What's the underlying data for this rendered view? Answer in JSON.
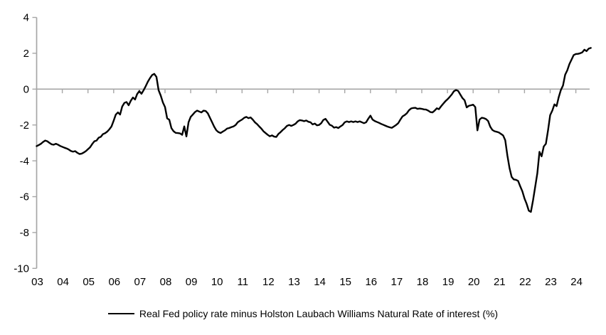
{
  "legend": {
    "label": "Real Fed policy rate minus Holston Laubach Williams Natural Rate of interest (%)"
  },
  "chart_data": {
    "type": "line",
    "title": "",
    "xlabel": "",
    "ylabel": "",
    "grid": false,
    "legend_position": "bottom-center",
    "line_color": "#000000",
    "axis_color": "#a6a6a6",
    "label_color": "#000000",
    "ylim": [
      -10,
      4
    ],
    "y_ticks": [
      4,
      2,
      0,
      -2,
      -4,
      -6,
      -8,
      -10
    ],
    "x_tick_labels": [
      "03",
      "04",
      "05",
      "06",
      "07",
      "08",
      "09",
      "10",
      "11",
      "12",
      "13",
      "14",
      "15",
      "16",
      "17",
      "18",
      "19",
      "20",
      "21",
      "22",
      "23",
      "24"
    ],
    "series": [
      {
        "name": "Real Fed policy rate minus Holston Laubach Williams Natural Rate of interest (%)",
        "frequency": "monthly",
        "start": "2003-01",
        "end": "2024-08",
        "values": [
          -3.18,
          -3.12,
          -3.05,
          -2.95,
          -2.87,
          -2.91,
          -3.0,
          -3.08,
          -3.1,
          -3.05,
          -3.1,
          -3.17,
          -3.22,
          -3.27,
          -3.31,
          -3.37,
          -3.45,
          -3.49,
          -3.46,
          -3.55,
          -3.62,
          -3.6,
          -3.54,
          -3.46,
          -3.35,
          -3.24,
          -3.06,
          -2.91,
          -2.87,
          -2.71,
          -2.66,
          -2.51,
          -2.46,
          -2.37,
          -2.24,
          -2.08,
          -1.76,
          -1.42,
          -1.3,
          -1.42,
          -0.97,
          -0.77,
          -0.72,
          -0.9,
          -0.65,
          -0.47,
          -0.58,
          -0.27,
          -0.11,
          -0.26,
          -0.06,
          0.17,
          0.42,
          0.62,
          0.79,
          0.85,
          0.68,
          -0.06,
          -0.36,
          -0.74,
          -1.0,
          -1.63,
          -1.71,
          -2.18,
          -2.35,
          -2.44,
          -2.45,
          -2.47,
          -2.55,
          -2.08,
          -2.64,
          -1.85,
          -1.55,
          -1.42,
          -1.28,
          -1.2,
          -1.25,
          -1.3,
          -1.2,
          -1.22,
          -1.35,
          -1.6,
          -1.85,
          -2.1,
          -2.3,
          -2.4,
          -2.45,
          -2.37,
          -2.3,
          -2.2,
          -2.17,
          -2.12,
          -2.08,
          -2.0,
          -1.85,
          -1.77,
          -1.7,
          -1.6,
          -1.55,
          -1.62,
          -1.58,
          -1.7,
          -1.85,
          -1.95,
          -2.08,
          -2.2,
          -2.35,
          -2.45,
          -2.55,
          -2.63,
          -2.58,
          -2.65,
          -2.67,
          -2.5,
          -2.4,
          -2.28,
          -2.18,
          -2.05,
          -2.0,
          -2.05,
          -2.0,
          -1.93,
          -1.8,
          -1.73,
          -1.75,
          -1.79,
          -1.75,
          -1.82,
          -1.85,
          -1.97,
          -1.92,
          -2.02,
          -2.0,
          -1.9,
          -1.72,
          -1.66,
          -1.82,
          -1.99,
          -2.04,
          -2.15,
          -2.12,
          -2.17,
          -2.08,
          -2.0,
          -1.85,
          -1.8,
          -1.84,
          -1.8,
          -1.84,
          -1.8,
          -1.84,
          -1.8,
          -1.85,
          -1.9,
          -1.85,
          -1.65,
          -1.48,
          -1.7,
          -1.78,
          -1.83,
          -1.88,
          -1.94,
          -1.99,
          -2.04,
          -2.09,
          -2.13,
          -2.16,
          -2.08,
          -2.0,
          -1.9,
          -1.7,
          -1.52,
          -1.45,
          -1.35,
          -1.18,
          -1.08,
          -1.05,
          -1.04,
          -1.1,
          -1.08,
          -1.1,
          -1.13,
          -1.14,
          -1.2,
          -1.28,
          -1.3,
          -1.2,
          -1.07,
          -1.12,
          -0.96,
          -0.82,
          -0.68,
          -0.57,
          -0.44,
          -0.3,
          -0.12,
          -0.05,
          -0.1,
          -0.3,
          -0.5,
          -0.62,
          -1.02,
          -0.93,
          -0.9,
          -0.87,
          -1.0,
          -2.3,
          -1.7,
          -1.6,
          -1.62,
          -1.67,
          -1.78,
          -2.1,
          -2.28,
          -2.35,
          -2.38,
          -2.42,
          -2.5,
          -2.58,
          -2.85,
          -3.7,
          -4.4,
          -4.9,
          -5.04,
          -5.06,
          -5.12,
          -5.42,
          -5.7,
          -6.1,
          -6.4,
          -6.78,
          -6.85,
          -6.2,
          -5.45,
          -4.7,
          -3.5,
          -3.75,
          -3.2,
          -3.05,
          -2.3,
          -1.45,
          -1.2,
          -0.85,
          -0.95,
          -0.45,
          -0.05,
          0.2,
          0.8,
          1.05,
          1.4,
          1.65,
          1.9,
          1.96,
          1.97,
          2.0,
          2.05,
          2.2,
          2.12,
          2.26,
          2.3
        ]
      }
    ]
  }
}
